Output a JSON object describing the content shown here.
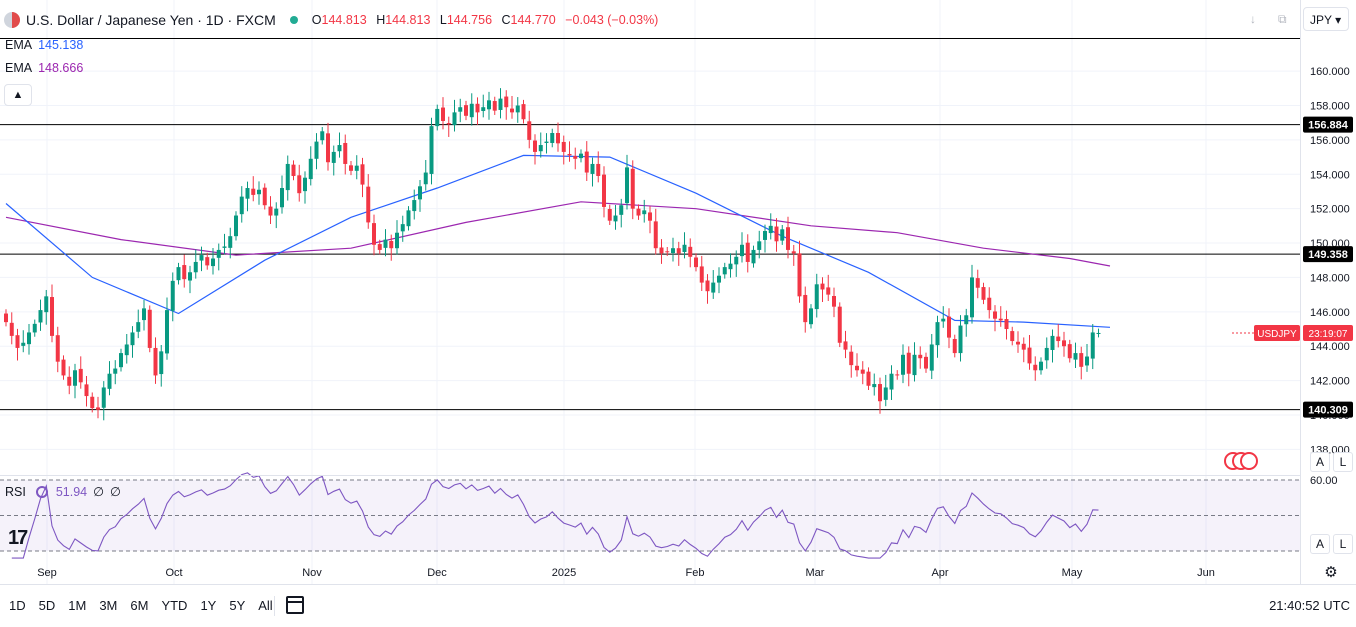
{
  "header": {
    "symbol_title": "U.S. Dollar / Japanese Yen · 1D · FXCM",
    "open_label": "O",
    "open": "144.813",
    "high_label": "H",
    "high": "144.813",
    "low_label": "L",
    "low": "144.756",
    "close_label": "C",
    "close": "144.770",
    "change": "−0.043 (−0.03%)"
  },
  "ema1": {
    "label": "EMA",
    "value": "145.138",
    "color": "#2962ff"
  },
  "ema2": {
    "label": "EMA",
    "value": "148.666",
    "color": "#9c27b0"
  },
  "collapse_icon": "▲",
  "currency_button": "JPY",
  "toolbar_icons": [
    "download-icon",
    "fullscreen-icon"
  ],
  "rsi": {
    "label": "RSI",
    "value": "51.94",
    "extra1": "∅",
    "extra2": "∅",
    "color": "#7e57c2"
  },
  "tv_logo": "17",
  "scale_buttons": {
    "auto": "A",
    "log": "L"
  },
  "timeframes": [
    "1D",
    "5D",
    "1M",
    "3M",
    "6M",
    "YTD",
    "1Y",
    "5Y",
    "All"
  ],
  "clock": "21:40:52 UTC",
  "colors": {
    "up": "#089981",
    "down": "#f23645",
    "grid": "#f0f3fa",
    "text": "#131722"
  },
  "chart_data": [
    {
      "type": "candlestick",
      "title": "U.S. Dollar / Japanese Yen · 1D · FXCM",
      "symbol": "USDJPY",
      "x_labels": [
        "Sep",
        "Oct",
        "Nov",
        "Dec",
        "2025",
        "Feb",
        "Mar",
        "Apr",
        "May",
        "Jun"
      ],
      "yticks": [
        138,
        140,
        142,
        144,
        146,
        148,
        150,
        152,
        154,
        156,
        158,
        160
      ],
      "ytick_labels": [
        "138.000",
        "140.000",
        "142.000",
        "144.000",
        "146.000",
        "148.000",
        "150.000",
        "152.000",
        "154.000",
        "156.000",
        "158.000",
        "160.000"
      ],
      "ylim": [
        136.8,
        162.1
      ],
      "grid": true,
      "horizontal_lines": [
        {
          "value": 161.9,
          "label": ""
        },
        {
          "value": 156.884,
          "label": "156.884"
        },
        {
          "value": 149.358,
          "label": "149.358"
        },
        {
          "value": 140.309,
          "label": "140.309"
        }
      ],
      "last_price_label": {
        "symbol": "USDJPY",
        "countdown": "23:19:07",
        "value": 144.77
      },
      "closes": [
        145.4,
        144.6,
        143.9,
        144.2,
        144.8,
        145.3,
        146.1,
        146.9,
        144.6,
        143.1,
        142.3,
        141.7,
        142.6,
        141.9,
        141.1,
        140.4,
        140.3,
        141.6,
        142.4,
        142.7,
        143.6,
        144.1,
        144.8,
        145.4,
        146.2,
        143.9,
        142.3,
        143.7,
        146.1,
        147.8,
        148.6,
        147.9,
        148.3,
        148.9,
        149.3,
        148.7,
        149.1,
        149.6,
        149.8,
        150.4,
        151.6,
        152.7,
        153.2,
        152.8,
        153.1,
        152.2,
        151.6,
        152.0,
        153.2,
        154.6,
        153.9,
        152.9,
        153.8,
        154.9,
        155.9,
        156.5,
        154.7,
        155.3,
        155.7,
        154.6,
        154.2,
        154.5,
        153.4,
        151.2,
        149.9,
        149.6,
        150.2,
        149.7,
        150.6,
        151.1,
        151.9,
        152.5,
        153.3,
        154.1,
        156.8,
        157.8,
        157.1,
        156.9,
        157.6,
        157.9,
        157.4,
        158.1,
        157.6,
        157.9,
        158.3,
        157.7,
        158.4,
        157.9,
        157.6,
        158.0,
        157.2,
        156.0,
        155.3,
        155.7,
        155.9,
        156.4,
        155.8,
        155.3,
        155.1,
        154.9,
        155.2,
        154.1,
        154.6,
        153.9,
        152.1,
        151.3,
        151.6,
        152.2,
        154.4,
        152.0,
        151.6,
        151.9,
        151.3,
        149.7,
        149.4,
        149.5,
        149.7,
        149.4,
        149.9,
        149.2,
        148.6,
        147.7,
        147.2,
        147.7,
        148.1,
        148.6,
        148.8,
        149.2,
        149.9,
        148.9,
        149.6,
        150.1,
        150.7,
        151.0,
        150.1,
        150.8,
        149.6,
        149.4,
        146.9,
        145.4,
        146.2,
        147.6,
        147.3,
        147.0,
        146.3,
        144.2,
        143.8,
        142.9,
        142.6,
        142.4,
        141.7,
        141.8,
        140.8,
        141.6,
        142.4,
        142.3,
        143.5,
        142.4,
        143.5,
        143.3,
        142.7,
        144.1,
        145.4,
        145.6,
        144.5,
        143.6,
        145.2,
        145.8,
        148.0,
        147.4,
        146.7,
        146.1,
        145.6,
        145.5,
        145.0,
        144.3,
        144.1,
        143.8,
        143.0,
        142.6,
        143.1,
        143.9,
        144.6,
        144.3,
        144.0,
        143.3,
        143.6,
        142.8,
        143.4,
        144.8,
        144.77
      ],
      "ema_fast": {
        "label": "EMA",
        "value": 145.138,
        "start": 153.5,
        "points": [
          [
            0,
            152.3
          ],
          [
            15,
            148.0
          ],
          [
            30,
            145.9
          ],
          [
            45,
            149.0
          ],
          [
            60,
            151.5
          ],
          [
            75,
            153.2
          ],
          [
            90,
            155.1
          ],
          [
            105,
            155.0
          ],
          [
            120,
            152.9
          ],
          [
            135,
            150.4
          ],
          [
            150,
            148.3
          ],
          [
            165,
            145.5
          ],
          [
            177,
            145.4
          ],
          [
            192,
            145.1
          ]
        ]
      },
      "ema_slow": {
        "label": "EMA",
        "value": 148.666,
        "start": 151.6,
        "points": [
          [
            0,
            151.5
          ],
          [
            20,
            150.2
          ],
          [
            40,
            149.3
          ],
          [
            60,
            149.7
          ],
          [
            80,
            151.2
          ],
          [
            100,
            152.4
          ],
          [
            120,
            152.0
          ],
          [
            140,
            151.0
          ],
          [
            155,
            150.6
          ],
          [
            170,
            149.7
          ],
          [
            185,
            149.1
          ],
          [
            192,
            148.666
          ]
        ]
      }
    },
    {
      "type": "line",
      "title": "RSI",
      "ylim": [
        20,
        80
      ],
      "yticks": [
        60
      ],
      "ytick_labels": [
        "60.00"
      ],
      "bands": [
        70,
        50,
        30
      ],
      "last_value": 51.94
    }
  ]
}
